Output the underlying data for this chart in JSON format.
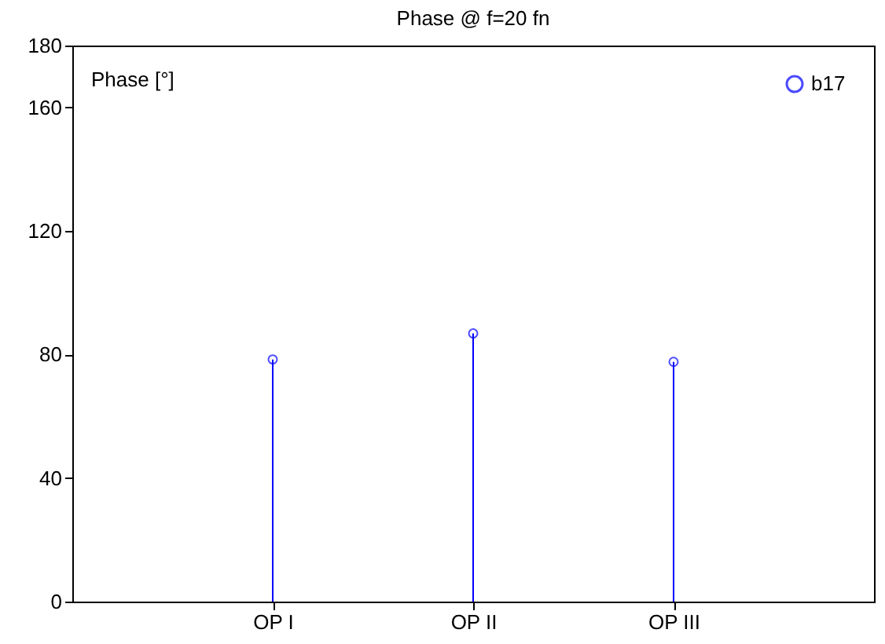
{
  "chart_data": {
    "type": "lollipop",
    "title": "Phase @ f=20 fn",
    "ylabel": "Phase [°]",
    "categories": [
      "OP I",
      "OP II",
      "OP III"
    ],
    "series": [
      {
        "name": "b17",
        "color": "#0000ff",
        "values": [
          78.4,
          86.8,
          77.6
        ]
      }
    ],
    "ylim": [
      0,
      180
    ],
    "yticks": [
      0,
      40,
      80,
      120,
      160,
      180
    ],
    "marker": "circle",
    "legend": "top right",
    "grid": false
  }
}
